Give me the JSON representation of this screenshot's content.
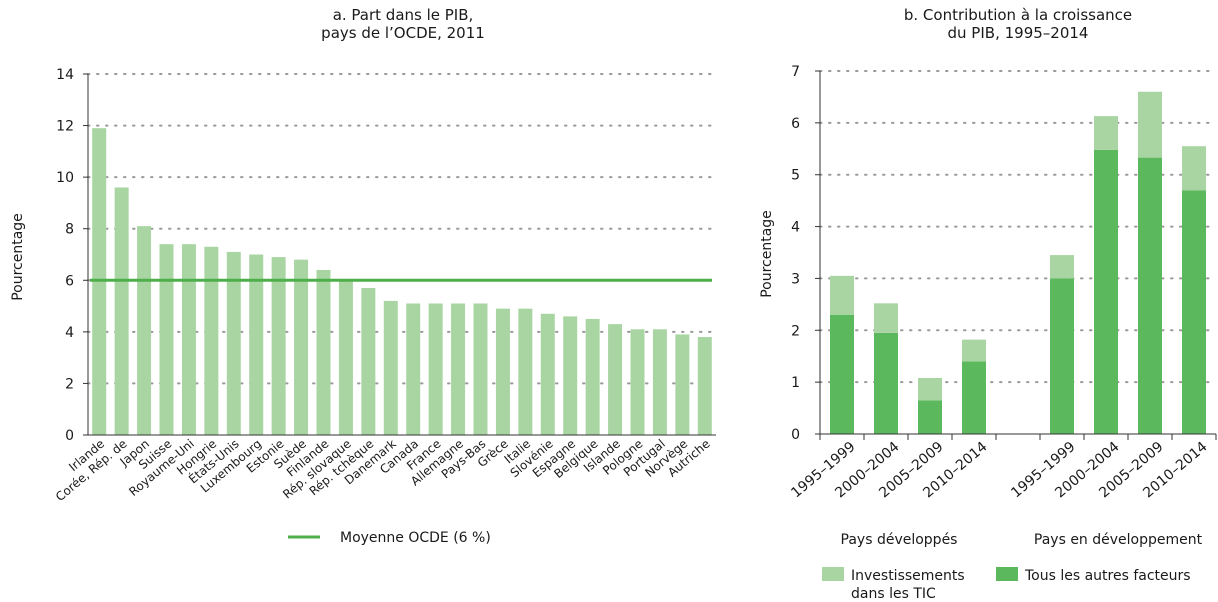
{
  "chart_data": [
    {
      "type": "bar",
      "title_lines": [
        "a. Part dans le PIB,",
        "pays de l’OCDE, 2011"
      ],
      "ylabel": "Pourcentage",
      "xlabel": "",
      "ylim": [
        0,
        14
      ],
      "yticks": [
        0,
        2,
        4,
        6,
        8,
        10,
        12,
        14
      ],
      "grid": "horizontal dotted",
      "categories": [
        "Irlande",
        "Corée, Rép. de",
        "Japon",
        "Suisse",
        "Royaume-Uni",
        "Hongrie",
        "États-Unis",
        "Luxembourg",
        "Estonie",
        "Suède",
        "Finlande",
        "Rép. slovaque",
        "Rép. tchèque",
        "Danemark",
        "Canada",
        "France",
        "Allemagne",
        "Pays-Bas",
        "Grèce",
        "Italie",
        "Slovénie",
        "Espagne",
        "Belgique",
        "Islande",
        "Pologne",
        "Portugal",
        "Norvège",
        "Autriche"
      ],
      "values": [
        11.9,
        9.6,
        8.1,
        7.4,
        7.4,
        7.3,
        7.1,
        7.0,
        6.9,
        6.8,
        6.4,
        6.0,
        5.7,
        5.2,
        5.1,
        5.1,
        5.1,
        5.1,
        4.9,
        4.9,
        4.7,
        4.6,
        4.5,
        4.3,
        4.1,
        4.1,
        3.9,
        3.8
      ],
      "reference_line": {
        "value": 6,
        "label": "Moyenne OCDE (6 %)"
      },
      "legend_position": "bottom",
      "colors": {
        "bar": "#a9d5a3",
        "reference": "#4daf4a"
      }
    },
    {
      "type": "bar",
      "stacked": true,
      "title_lines": [
        "b. Contribution à la croissance",
        "du PIB, 1995–2014"
      ],
      "ylabel": "Pourcentage",
      "xlabel": "",
      "ylim": [
        0,
        7
      ],
      "yticks": [
        0,
        1,
        2,
        3,
        4,
        5,
        6,
        7
      ],
      "grid": "horizontal dotted",
      "groups": [
        {
          "label": "Pays développés",
          "categories": [
            "1995–1999",
            "2000–2004",
            "2005–2009",
            "2010–2014"
          ]
        },
        {
          "label": "Pays en développement",
          "categories": [
            "1995–1999",
            "2000–2004",
            "2005–2009",
            "2010–2014"
          ]
        }
      ],
      "series": [
        {
          "name": "Tous les autres facteurs",
          "values": [
            2.3,
            1.95,
            0.65,
            1.4,
            3.0,
            5.48,
            5.33,
            4.7
          ],
          "color": "#5cb85c"
        },
        {
          "name": "Investissements dans les TIC",
          "legend_lines": [
            "Investissements",
            "dans les TIC"
          ],
          "values": [
            0.75,
            0.57,
            0.43,
            0.42,
            0.45,
            0.65,
            1.27,
            0.85
          ],
          "color": "#a9d5a3"
        }
      ],
      "legend_position": "bottom"
    }
  ]
}
